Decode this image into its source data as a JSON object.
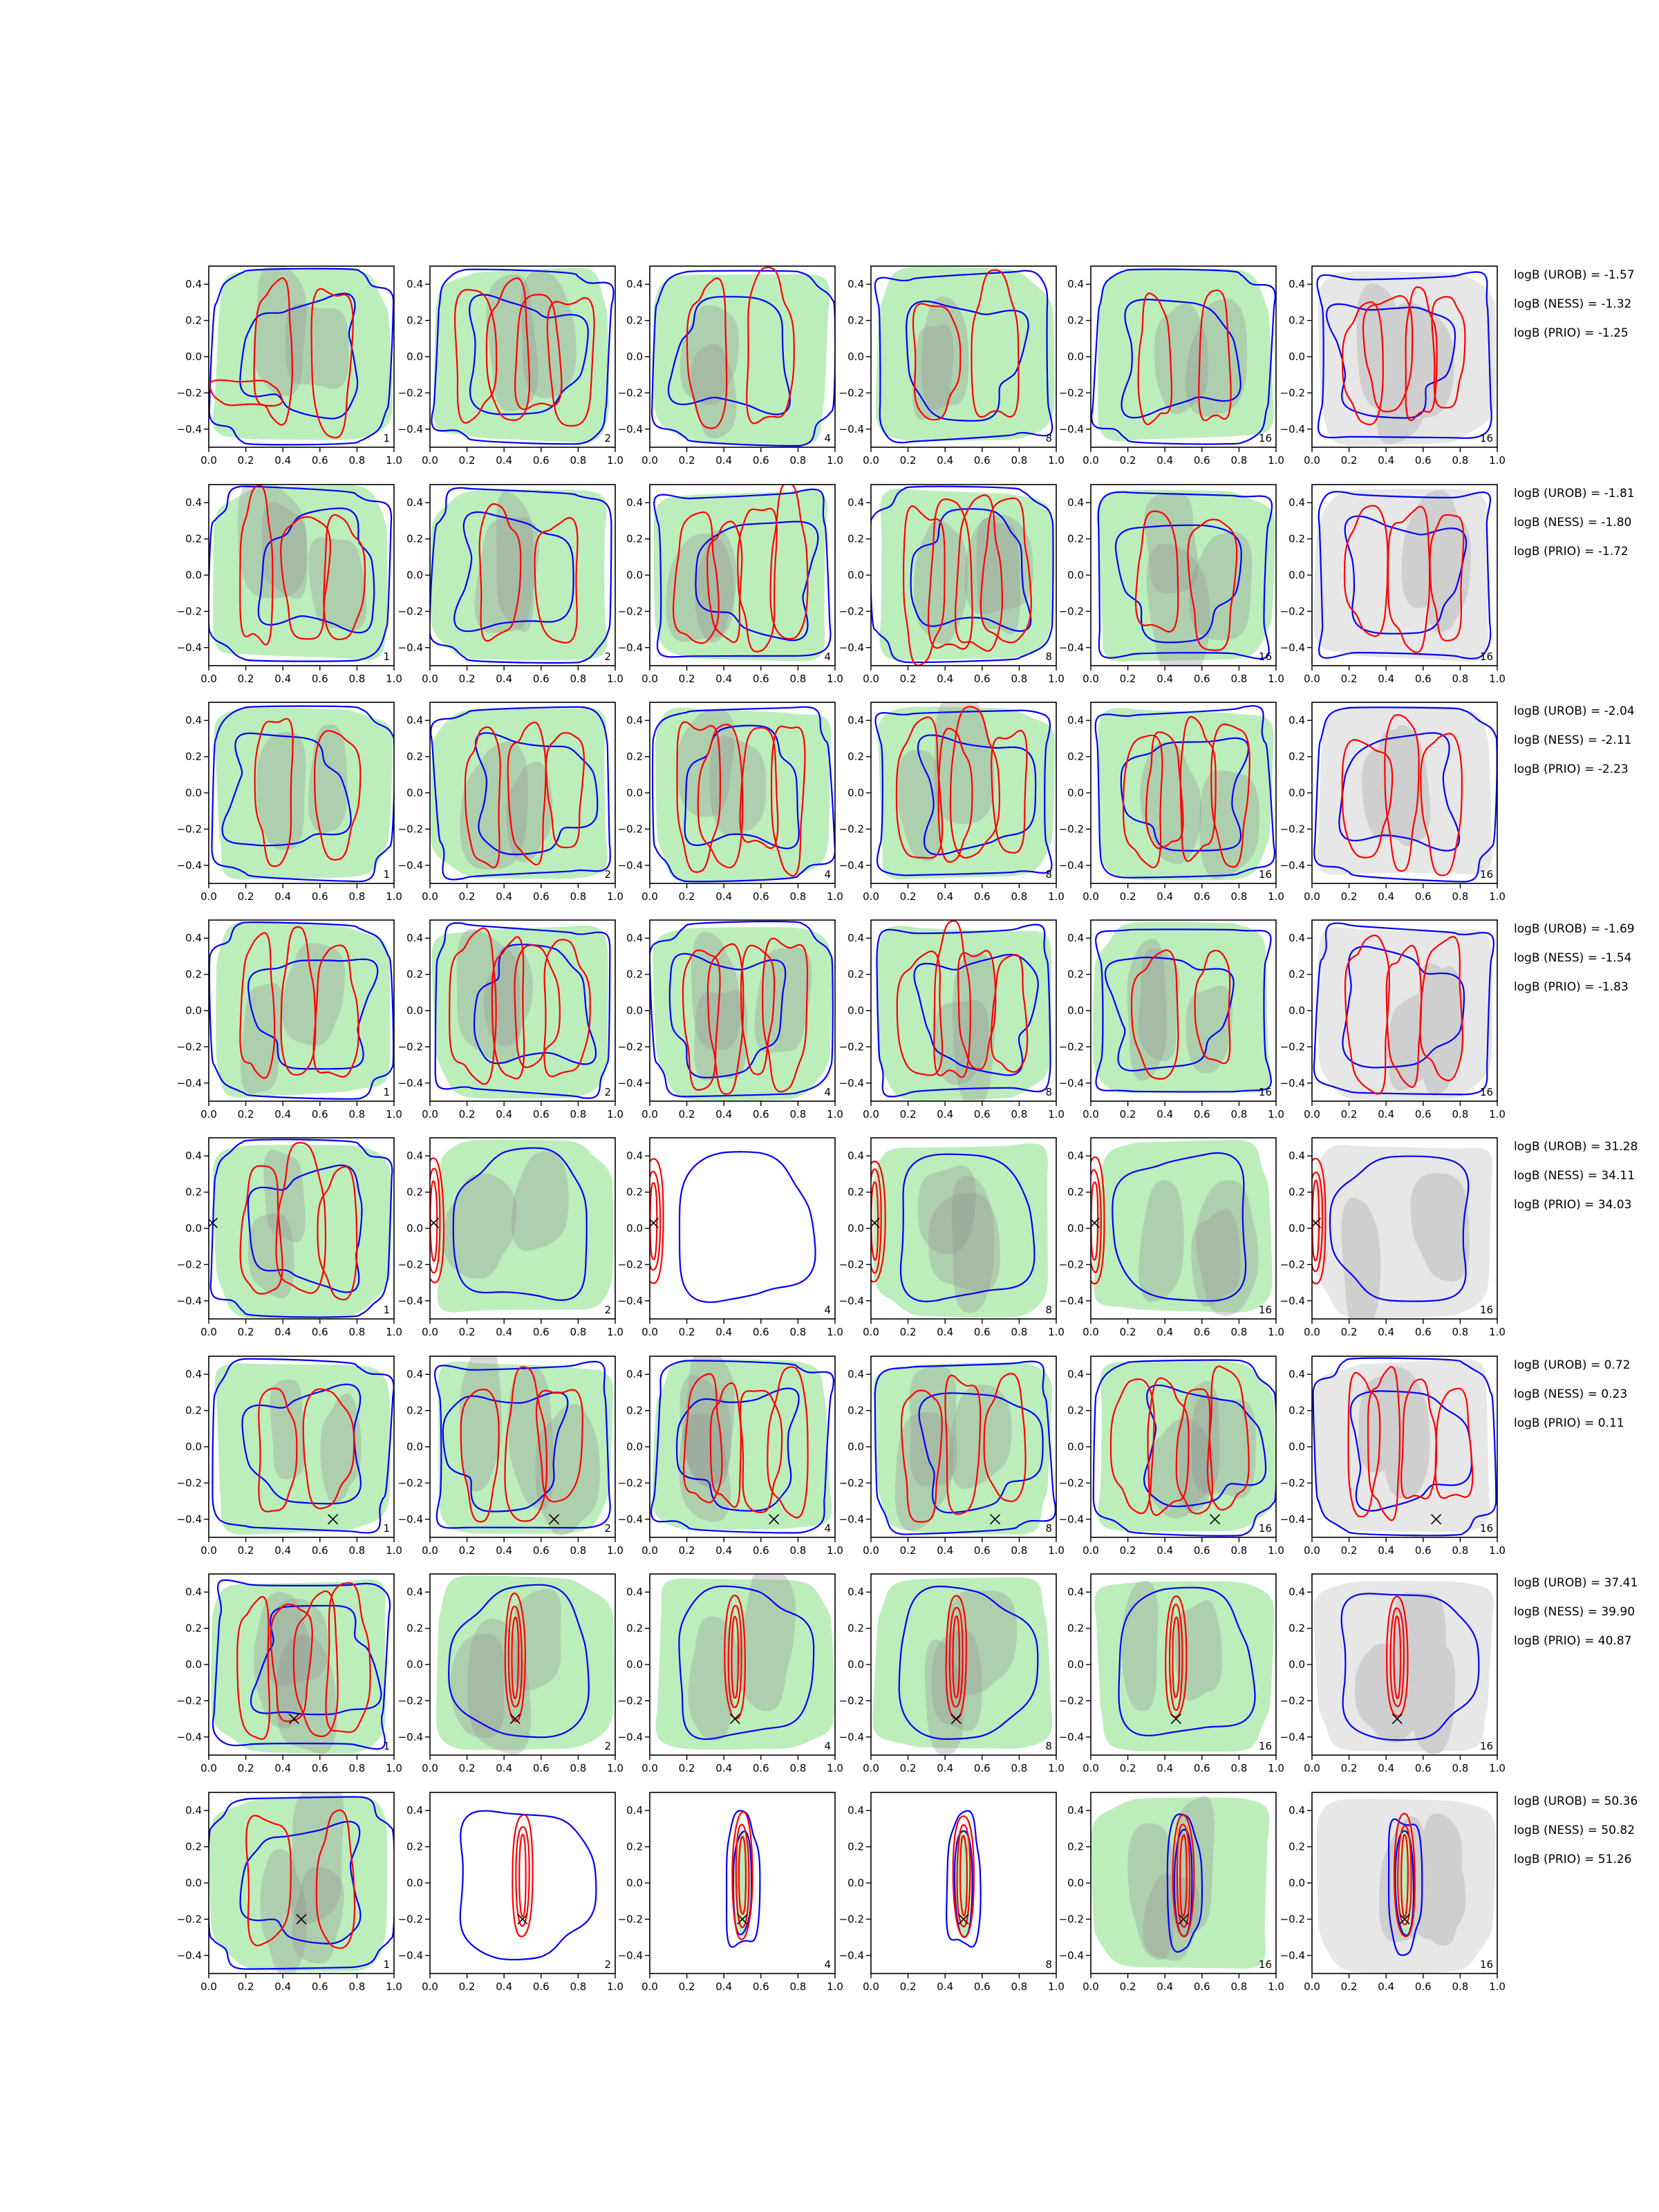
{
  "chart_data": {
    "type": "contour",
    "layout": {
      "rows": 8,
      "cols": 6
    },
    "panel_labels": [
      "1",
      "2",
      "4",
      "8",
      "16",
      "16"
    ],
    "xlim": [
      0.0,
      1.0
    ],
    "ylim": [
      -0.5,
      0.5
    ],
    "x_ticks": [
      "0.0",
      "0.2",
      "0.4",
      "0.6",
      "0.8",
      "1.0"
    ],
    "y_ticks": [
      "0.4",
      "0.2",
      "0.0",
      "−0.2",
      "−0.4"
    ],
    "colors": {
      "blue": "#0000ff",
      "red": "#ff0000",
      "green": "#b8edb8",
      "gray": "#d3d3d3"
    },
    "rows": [
      {
        "logB": [
          "logB (UROB) = -1.57",
          "logB (NESS) = -1.32",
          "logB (PRIO) = -1.25"
        ],
        "marker": null,
        "focused": false
      },
      {
        "logB": [
          "logB (UROB) = -1.81",
          "logB (NESS) = -1.80",
          "logB (PRIO) = -1.72"
        ],
        "marker": null,
        "focused": false
      },
      {
        "logB": [
          "logB (UROB) = -2.04",
          "logB (NESS) = -2.11",
          "logB (PRIO) = -2.23"
        ],
        "marker": null,
        "focused": false
      },
      {
        "logB": [
          "logB (UROB) = -1.69",
          "logB (NESS) = -1.54",
          "logB (PRIO) = -1.83"
        ],
        "marker": null,
        "focused": false
      },
      {
        "logB": [
          "logB (UROB) = 31.28",
          "logB (NESS) = 34.11",
          "logB (PRIO) = 34.03"
        ],
        "marker": [
          0.02,
          0.03
        ],
        "focused": true
      },
      {
        "logB": [
          "logB (UROB) = 0.72",
          "logB (NESS) = 0.23",
          "logB (PRIO) = 0.11"
        ],
        "marker": [
          0.67,
          -0.4
        ],
        "focused": false
      },
      {
        "logB": [
          "logB (UROB) = 37.41",
          "logB (NESS) = 39.90",
          "logB (PRIO) = 40.87"
        ],
        "marker": [
          0.46,
          -0.3
        ],
        "focused": true
      },
      {
        "logB": [
          "logB (UROB) = 50.36",
          "logB (NESS) = 50.82",
          "logB (PRIO) = 51.26"
        ],
        "marker": [
          0.5,
          -0.2
        ],
        "focused": true
      }
    ]
  }
}
